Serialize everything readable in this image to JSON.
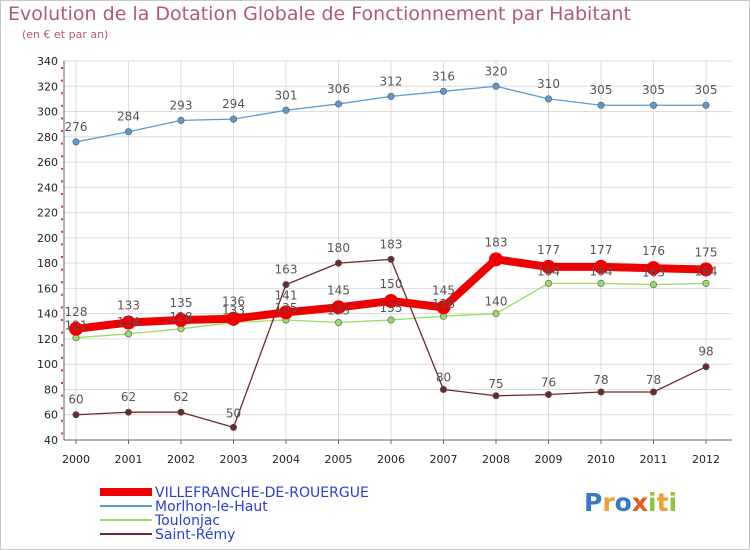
{
  "title": "Evolution de la Dotation Globale de Fonctionnement par Habitant",
  "subtitle": "(en € et par an)",
  "chart_data": {
    "type": "line",
    "title": "Evolution de la Dotation Globale de Fonctionnement par Habitant",
    "subtitle": "(en € et par an)",
    "xlabel": "",
    "ylabel": "",
    "x": [
      "2000",
      "2001",
      "2002",
      "2003",
      "2004",
      "2005",
      "2006",
      "2007",
      "2008",
      "2009",
      "2010",
      "2011",
      "2012"
    ],
    "ylim": [
      40,
      340
    ],
    "yticks": [
      40,
      60,
      80,
      100,
      120,
      140,
      160,
      180,
      200,
      220,
      240,
      260,
      280,
      300,
      320,
      340
    ],
    "grid": true,
    "legend_position": "bottom-left",
    "series": [
      {
        "name": "VILLEFRANCHE-DE-ROUERGUE",
        "color": "#ee0000",
        "emphasis": true,
        "values": [
          128,
          133,
          135,
          136,
          141,
          145,
          150,
          145,
          183,
          177,
          177,
          176,
          175
        ]
      },
      {
        "name": "Morlhon-le-Haut",
        "color": "#5b9bd5",
        "emphasis": false,
        "values": [
          276,
          284,
          293,
          294,
          301,
          306,
          312,
          316,
          320,
          310,
          305,
          305,
          305
        ]
      },
      {
        "name": "Toulonjac",
        "color": "#99dd66",
        "emphasis": false,
        "values": [
          121,
          124,
          128,
          133,
          135,
          133,
          135,
          138,
          140,
          164,
          164,
          163,
          164
        ]
      },
      {
        "name": "Saint-Rémy",
        "color": "#6b2a2a",
        "emphasis": false,
        "values": [
          60,
          62,
          62,
          50,
          163,
          180,
          183,
          80,
          75,
          76,
          78,
          78,
          98
        ]
      }
    ]
  },
  "logo": {
    "text": "Proxiti",
    "letters": [
      {
        "ch": "P",
        "color": "#3a78c3"
      },
      {
        "ch": "r",
        "color": "#f0a030"
      },
      {
        "ch": "o",
        "color": "#3a78c3"
      },
      {
        "ch": "x",
        "color": "#e85a20"
      },
      {
        "ch": "i",
        "color": "#8cc63e"
      },
      {
        "ch": "t",
        "color": "#f0a030"
      },
      {
        "ch": "i",
        "color": "#8cc63e"
      }
    ]
  }
}
